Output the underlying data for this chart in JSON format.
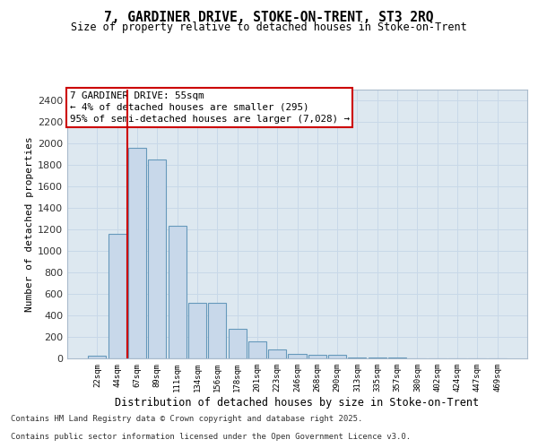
{
  "title1": "7, GARDINER DRIVE, STOKE-ON-TRENT, ST3 2RQ",
  "title2": "Size of property relative to detached houses in Stoke-on-Trent",
  "xlabel": "Distribution of detached houses by size in Stoke-on-Trent",
  "ylabel": "Number of detached properties",
  "categories": [
    "22sqm",
    "44sqm",
    "67sqm",
    "89sqm",
    "111sqm",
    "134sqm",
    "156sqm",
    "178sqm",
    "201sqm",
    "223sqm",
    "246sqm",
    "268sqm",
    "290sqm",
    "313sqm",
    "335sqm",
    "357sqm",
    "380sqm",
    "402sqm",
    "424sqm",
    "447sqm",
    "469sqm"
  ],
  "values": [
    25,
    1160,
    1960,
    1850,
    1230,
    515,
    515,
    275,
    155,
    85,
    45,
    30,
    30,
    10,
    5,
    5,
    3,
    2,
    1,
    1,
    1
  ],
  "bar_color": "#c8d8ea",
  "bar_edge_color": "#6699bb",
  "vline_x": 1.5,
  "vline_color": "#cc0000",
  "annotation_title": "7 GARDINER DRIVE: 55sqm",
  "annotation_line1": "← 4% of detached houses are smaller (295)",
  "annotation_line2": "95% of semi-detached houses are larger (7,028) →",
  "annotation_box_color": "#ffffff",
  "annotation_box_edge_color": "#cc0000",
  "ylim": [
    0,
    2500
  ],
  "yticks": [
    0,
    200,
    400,
    600,
    800,
    1000,
    1200,
    1400,
    1600,
    1800,
    2000,
    2200,
    2400
  ],
  "grid_color": "#c8d8e8",
  "bg_color": "#dde8f0",
  "footer1": "Contains HM Land Registry data © Crown copyright and database right 2025.",
  "footer2": "Contains public sector information licensed under the Open Government Licence v3.0."
}
